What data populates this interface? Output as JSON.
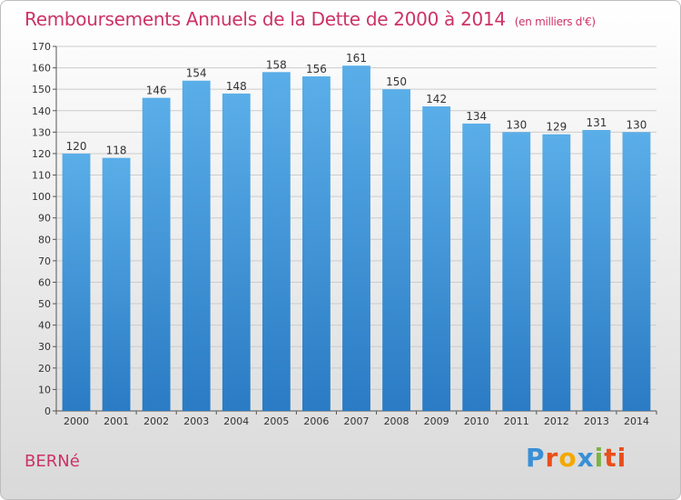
{
  "header": {
    "title": "Remboursements Annuels de la Dette de 2000 à 2014",
    "unit": "(en milliers d'€)"
  },
  "footer": {
    "commune": "BERNé",
    "logo": "Proxiti"
  },
  "colors": {
    "title": "#cc3366",
    "bar_top": "#5aaee8",
    "bar_bottom": "#2a7bc4",
    "grid": "#cccccc"
  },
  "chart_data": {
    "type": "bar",
    "categories": [
      "2000",
      "2001",
      "2002",
      "2003",
      "2004",
      "2005",
      "2006",
      "2007",
      "2008",
      "2009",
      "2010",
      "2011",
      "2012",
      "2013",
      "2014"
    ],
    "values": [
      120,
      118,
      146,
      154,
      148,
      158,
      156,
      161,
      150,
      142,
      134,
      130,
      129,
      131,
      130
    ],
    "data_labels": [
      "120",
      "118",
      "146",
      "154",
      "148",
      "158",
      "156",
      "161",
      "150",
      "142",
      "134",
      "130",
      "129",
      "131",
      "130"
    ],
    "title": "Remboursements Annuels de la Dette de 2000 à 2014",
    "ylim": [
      0,
      170
    ],
    "yticks": [
      0,
      10,
      20,
      30,
      40,
      50,
      60,
      70,
      80,
      90,
      100,
      110,
      120,
      130,
      140,
      150,
      160,
      170
    ],
    "grid": true
  }
}
